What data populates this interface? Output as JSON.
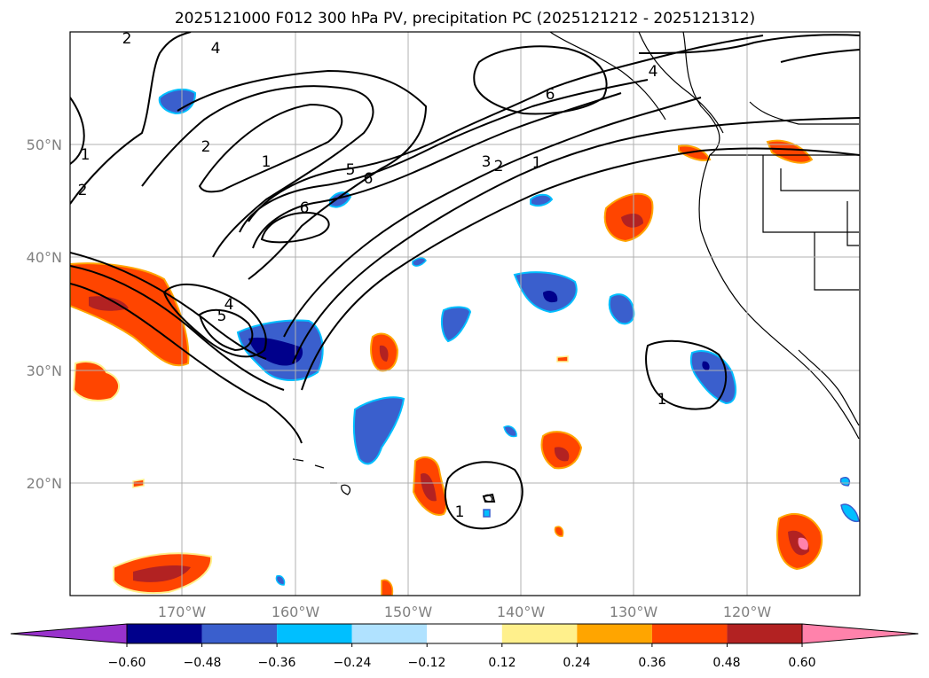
{
  "title": "2025121000 F012 300 hPa PV, precipitation PC (2025121212 - 2025121312)",
  "map": {
    "lon_labels": [
      "170°W",
      "160°W",
      "150°W",
      "140°W",
      "130°W",
      "120°W"
    ],
    "lat_labels": [
      "50°N",
      "40°N",
      "30°N",
      "20°N"
    ],
    "lon_range": [
      -180,
      -110
    ],
    "lat_range": [
      10,
      60
    ],
    "gridlines": true
  },
  "pv_contour_labels": [
    "2",
    "4",
    "1",
    "2",
    "2",
    "1",
    "5",
    "6",
    "6",
    "3",
    "2",
    "1",
    "6",
    "4",
    "4",
    "5",
    "1",
    "1"
  ],
  "colorbar": {
    "ticks": [
      "−0.60",
      "−0.48",
      "−0.36",
      "−0.24",
      "−0.12",
      "0.12",
      "0.24",
      "0.36",
      "0.48",
      "0.60"
    ],
    "colors": [
      "#9932cc",
      "#00008b",
      "#3a5fcd",
      "#00bfff",
      "#b0e2ff",
      "#ffffff",
      "#fff08c",
      "#ffa500",
      "#ff4500",
      "#b22222",
      "#ff82ab"
    ],
    "extend": "both"
  }
}
